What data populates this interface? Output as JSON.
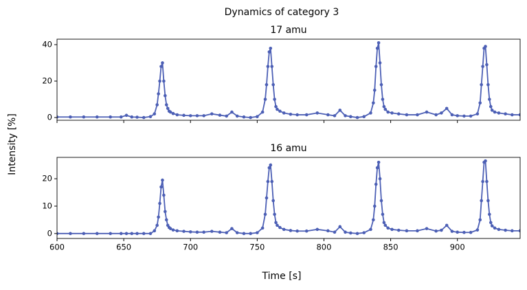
{
  "title": "Dynamics of category 3",
  "xlabel": "Time [s]",
  "ylabel": "Intensity [%]",
  "chart_data": [
    {
      "type": "line",
      "title": "17 amu",
      "xticklabels": false,
      "x": [
        600,
        610,
        620,
        630,
        640,
        648,
        652,
        656,
        660,
        665,
        670,
        673,
        675,
        676,
        677,
        678,
        679,
        680,
        681,
        682,
        683,
        684,
        685,
        687,
        690,
        695,
        700,
        705,
        710,
        716,
        722,
        727,
        731,
        735,
        740,
        745,
        750,
        754,
        756,
        757,
        758,
        759,
        760,
        761,
        762,
        763,
        764,
        765,
        767,
        770,
        775,
        780,
        787,
        795,
        803,
        808,
        812,
        816,
        820,
        825,
        830,
        835,
        837,
        838,
        839,
        840,
        841,
        842,
        843,
        844,
        845,
        846,
        848,
        851,
        856,
        862,
        870,
        877,
        884,
        888,
        892,
        896,
        900,
        905,
        910,
        915,
        917,
        918,
        919,
        920,
        921,
        922,
        923,
        924,
        925,
        926,
        928,
        931,
        936,
        941,
        947
      ],
      "series": [
        {
          "name": "17 amu",
          "color": "#4c5fb5",
          "values": [
            0.3,
            0.3,
            0.3,
            0.3,
            0.3,
            0.3,
            1.2,
            0.3,
            0.2,
            0,
            0.5,
            2,
            7,
            13,
            20,
            28,
            30,
            20,
            12,
            7,
            5,
            3.5,
            3,
            2.2,
            1.5,
            1.2,
            1,
            1,
            1,
            2,
            1.3,
            0.8,
            3,
            0.8,
            0.3,
            0,
            0.5,
            3,
            10,
            18,
            28,
            36,
            38,
            28,
            18,
            10,
            6,
            4.5,
            3.5,
            2.5,
            1.8,
            1.5,
            1.5,
            2.5,
            1.5,
            1,
            4,
            1,
            0.5,
            0,
            0.5,
            2.5,
            8,
            15,
            28,
            38,
            41,
            30,
            18,
            10,
            6,
            4.5,
            3,
            2.5,
            2,
            1.5,
            1.5,
            3,
            1.5,
            2.5,
            5,
            1.5,
            1,
            0.8,
            0.8,
            2,
            8,
            18,
            28,
            38,
            39,
            29,
            18,
            10,
            6,
            4,
            3,
            2.5,
            2,
            1.5,
            1.5
          ]
        }
      ],
      "xlim": [
        600,
        947
      ],
      "xticks": [
        600,
        650,
        700,
        750,
        800,
        850,
        900
      ],
      "ylim": [
        -1.5,
        43
      ],
      "yticks": [
        0,
        20,
        40
      ]
    },
    {
      "type": "line",
      "title": "16 amu",
      "xticklabels": true,
      "x": [
        600,
        610,
        620,
        630,
        640,
        648,
        652,
        656,
        660,
        665,
        670,
        673,
        675,
        676,
        677,
        678,
        679,
        680,
        681,
        682,
        683,
        684,
        685,
        687,
        690,
        695,
        700,
        705,
        710,
        716,
        722,
        727,
        731,
        735,
        740,
        745,
        750,
        754,
        756,
        757,
        758,
        759,
        760,
        761,
        762,
        763,
        764,
        765,
        767,
        770,
        775,
        780,
        787,
        795,
        803,
        808,
        812,
        816,
        820,
        825,
        830,
        835,
        837,
        838,
        839,
        840,
        841,
        842,
        843,
        844,
        845,
        846,
        848,
        851,
        856,
        862,
        870,
        877,
        884,
        888,
        892,
        896,
        900,
        905,
        910,
        915,
        917,
        918,
        919,
        920,
        921,
        922,
        923,
        924,
        925,
        926,
        928,
        931,
        936,
        941,
        947
      ],
      "series": [
        {
          "name": "16 amu",
          "color": "#4c5fb5",
          "values": [
            0,
            0,
            0,
            0,
            0,
            0,
            0,
            0,
            0,
            0,
            0,
            1,
            3,
            6,
            11,
            17,
            19.5,
            14,
            8,
            5,
            3,
            2.2,
            1.8,
            1.3,
            1,
            0.8,
            0.6,
            0.5,
            0.5,
            0.8,
            0.5,
            0.3,
            1.8,
            0.3,
            0,
            0,
            0.3,
            2,
            7,
            13,
            19,
            24,
            25,
            19,
            12,
            7,
            4,
            3,
            2.2,
            1.5,
            1.1,
            0.9,
            0.9,
            1.5,
            1,
            0.5,
            2.5,
            0.5,
            0.2,
            0,
            0.3,
            1.5,
            5,
            10,
            18,
            24,
            26,
            20,
            12,
            7,
            4,
            3,
            2,
            1.5,
            1.2,
            1,
            1,
            1.8,
            0.9,
            1.2,
            3,
            0.8,
            0.5,
            0.4,
            0.4,
            1.3,
            5,
            12,
            19,
            26,
            26.5,
            19,
            12,
            7,
            4,
            2.8,
            2,
            1.5,
            1.2,
            1,
            1
          ]
        }
      ],
      "xlim": [
        600,
        947
      ],
      "xticks": [
        600,
        650,
        700,
        750,
        800,
        850,
        900
      ],
      "ylim": [
        -1.8,
        27.8
      ],
      "yticks": [
        0,
        10,
        20
      ]
    }
  ]
}
